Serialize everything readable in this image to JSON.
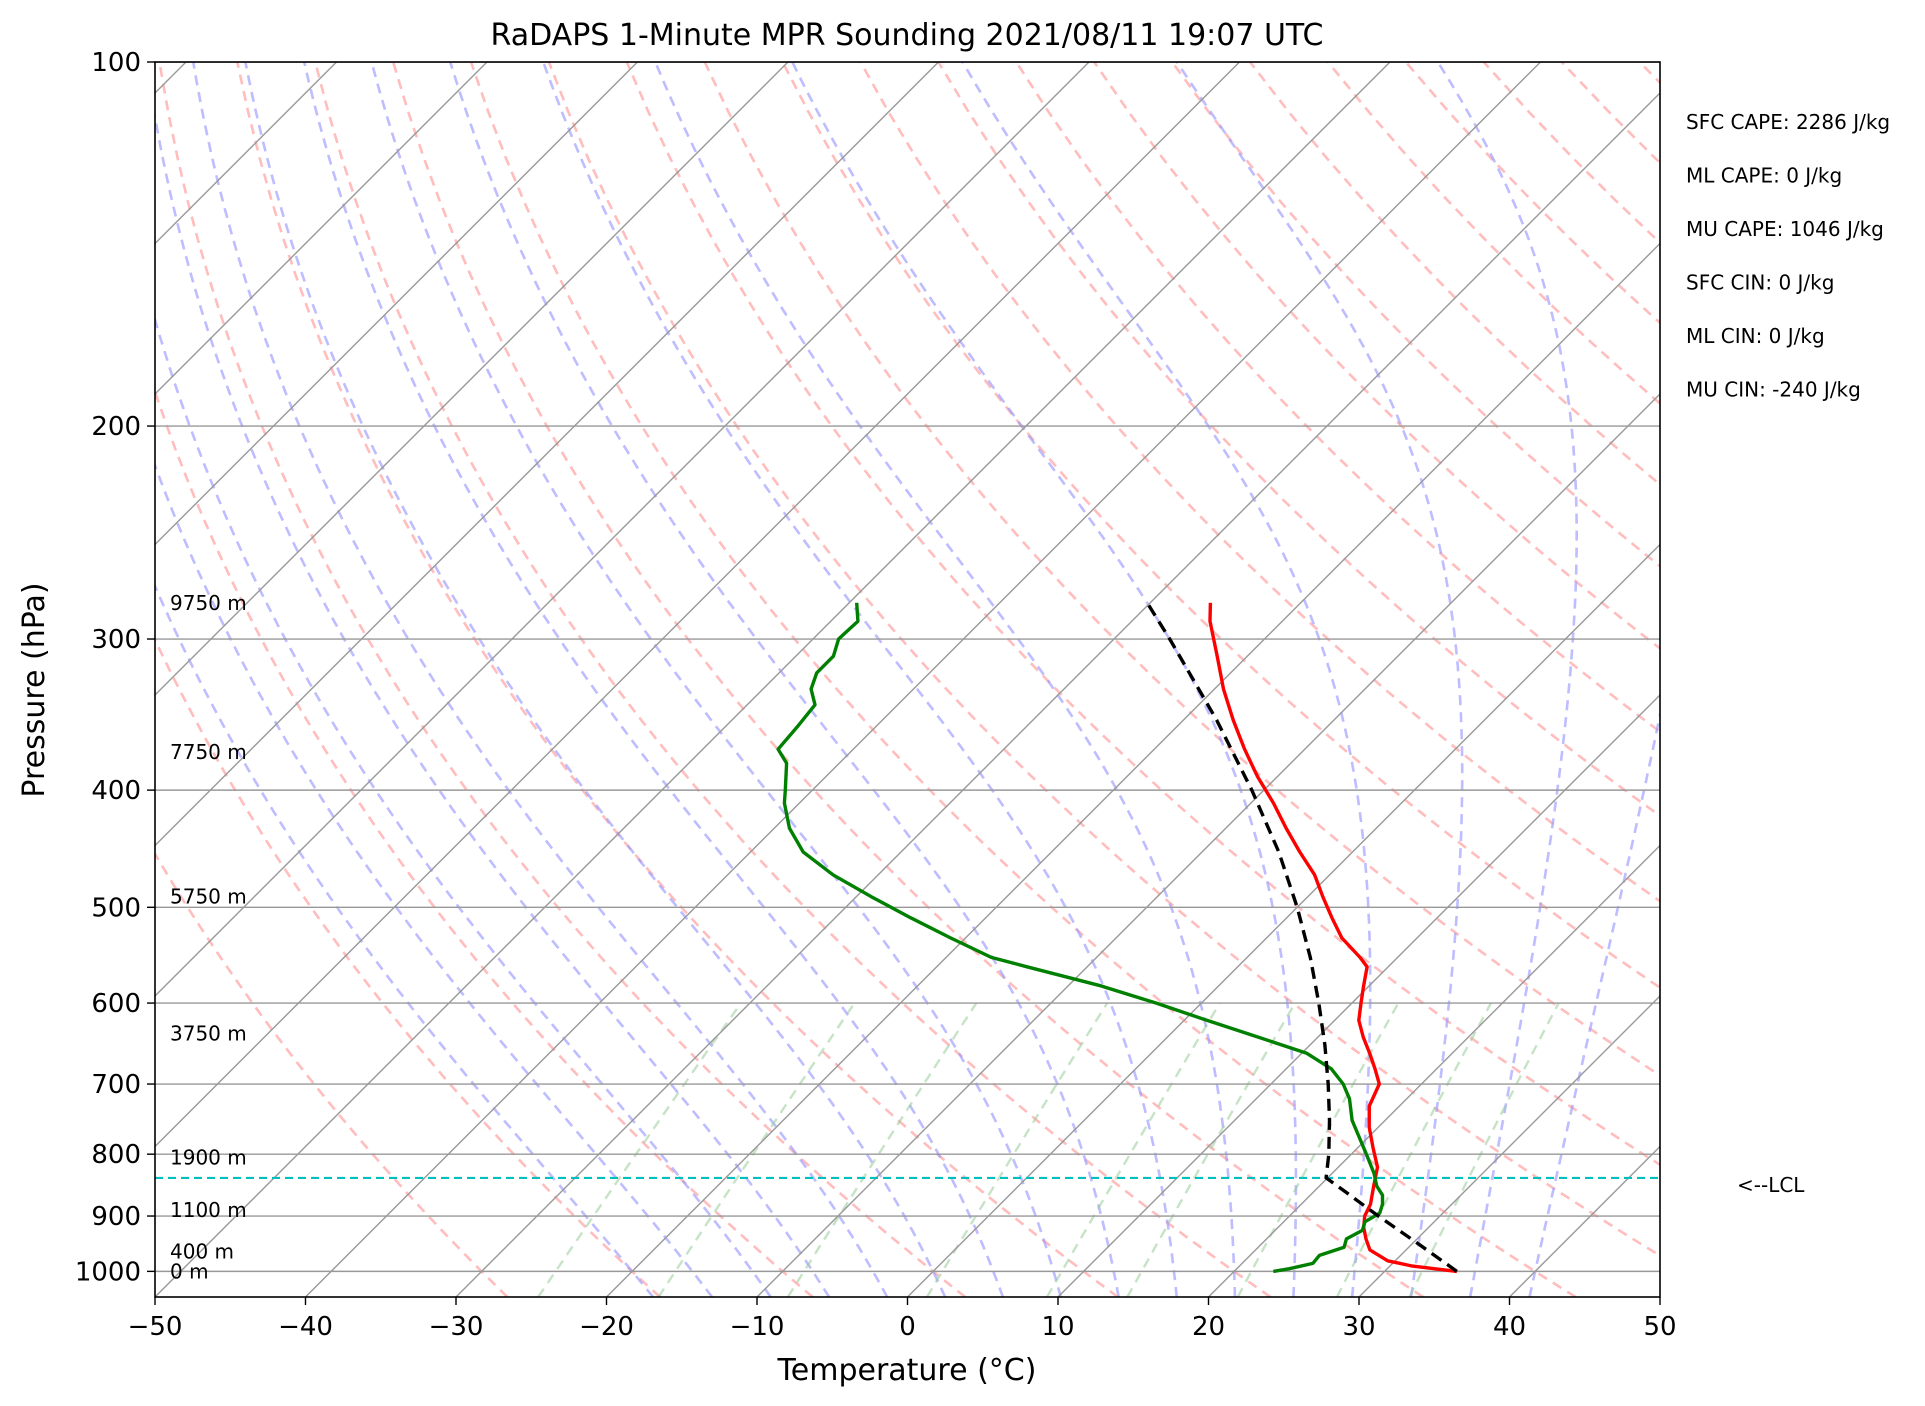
{
  "chart_data": {
    "type": "line",
    "title": "RaDAPS 1-Minute MPR Sounding 2021/08/11 19:07 UTC",
    "xlabel": "Temperature (°C)",
    "ylabel": "Pressure (hPa)",
    "xlim": [
      -50,
      50
    ],
    "ylim": [
      1050,
      100
    ],
    "y_scale": "log",
    "x_ticks": [
      "−50",
      "−40",
      "−30",
      "−20",
      "−10",
      "0",
      "10",
      "20",
      "30",
      "40",
      "50"
    ],
    "y_ticks": [
      "100",
      "200",
      "300",
      "400",
      "500",
      "600",
      "700",
      "800",
      "900",
      "1000"
    ],
    "grid": true,
    "skew": 45,
    "series": [
      {
        "color": "#ff0000",
        "p": [
          1000,
          990,
          980,
          960,
          940,
          920,
          900,
          880,
          850,
          820,
          790,
          760,
          730,
          700,
          680,
          660,
          640,
          620,
          600,
          580,
          560,
          550,
          530,
          510,
          490,
          470,
          450,
          430,
          410,
          390,
          370,
          350,
          330,
          310,
          290,
          280
        ],
        "t": [
          34.8,
          31.5,
          29.5,
          27.6,
          26.6,
          25.7,
          25.0,
          24.6,
          23.6,
          22.6,
          21.0,
          19.4,
          18.0,
          17.2,
          15.9,
          14.5,
          13.0,
          11.6,
          10.6,
          9.6,
          8.6,
          7.5,
          5.0,
          3.0,
          1.0,
          -1.0,
          -3.5,
          -6.0,
          -8.5,
          -11.3,
          -14.0,
          -16.7,
          -19.4,
          -22.0,
          -24.8,
          -26.0
        ]
      },
      {
        "color": "#008000",
        "p": [
          1000,
          995,
          985,
          970,
          955,
          940,
          925,
          910,
          895,
          880,
          865,
          850,
          830,
          800,
          770,
          750,
          720,
          700,
          680,
          660,
          640,
          620,
          600,
          580,
          560,
          550,
          530,
          510,
          490,
          470,
          450,
          430,
          410,
          400,
          380,
          370,
          355,
          340,
          330,
          320,
          310,
          300,
          290,
          280
        ],
        "t": [
          22.6,
          23.5,
          24.7,
          24.6,
          25.7,
          25.3,
          25.8,
          25.4,
          25.8,
          25.4,
          24.8,
          23.8,
          22.8,
          21.0,
          19.1,
          17.8,
          16.2,
          14.8,
          13.0,
          10.3,
          6.0,
          1.5,
          -3.0,
          -8.0,
          -14.0,
          -17.0,
          -21.0,
          -25.0,
          -29.0,
          -33.0,
          -36.5,
          -39.0,
          -41.0,
          -41.8,
          -43.5,
          -45.0,
          -45.2,
          -45.5,
          -46.8,
          -47.5,
          -47.5,
          -48.3,
          -48.2,
          -49.5
        ]
      },
      {
        "color": "#000000",
        "dashed": true,
        "p": [
          1000,
          950,
          900,
          850,
          837,
          800,
          750,
          700,
          650,
          600,
          550,
          500,
          450,
          400,
          350,
          300,
          280
        ],
        "t": [
          34.8,
          30.5,
          25.9,
          21.2,
          19.9,
          18.5,
          16.3,
          13.8,
          11.0,
          7.8,
          4.2,
          0.0,
          -4.9,
          -10.8,
          -17.8,
          -26.3,
          -30.2
        ]
      }
    ],
    "lcl_pressure": 837,
    "lcl_label": "<--LCL",
    "height_labels": [
      {
        "label": "9750 m",
        "p": 280
      },
      {
        "label": "7750 m",
        "p": 372
      },
      {
        "label": "5750 m",
        "p": 490
      },
      {
        "label": "3750 m",
        "p": 636
      },
      {
        "label": "1900 m",
        "p": 805
      },
      {
        "label": "1100 m",
        "p": 890
      },
      {
        "label": "400 m",
        "p": 963
      },
      {
        "label": "0 m",
        "p": 1000
      }
    ],
    "indices": [
      "SFC CAPE: 2286 J/kg",
      "ML CAPE: 0 J/kg",
      "MU CAPE: 1046 J/kg",
      "SFC CIN: 0 J/kg",
      "ML CIN: 0 J/kg",
      "MU CIN: -240 J/kg"
    ],
    "colors": {
      "dry_adiabats": "#ff9999",
      "moist_adiabats": "#9999ff",
      "mixing_ratio": "#99cc99",
      "isotherms": "#999999",
      "lcl_line": "#00bfbf"
    }
  }
}
